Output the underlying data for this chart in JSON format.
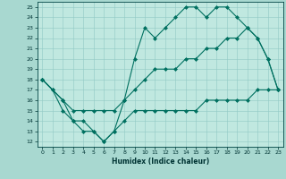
{
  "xlabel": "Humidex (Indice chaleur)",
  "bg_color": "#a8d8d0",
  "plot_bg_color": "#c0e8e0",
  "line_color": "#007060",
  "xlim": [
    -0.5,
    23.5
  ],
  "ylim": [
    11.5,
    25.5
  ],
  "xticks": [
    0,
    1,
    2,
    3,
    4,
    5,
    6,
    7,
    8,
    9,
    10,
    11,
    12,
    13,
    14,
    15,
    16,
    17,
    18,
    19,
    20,
    21,
    22,
    23
  ],
  "yticks": [
    12,
    13,
    14,
    15,
    16,
    17,
    18,
    19,
    20,
    21,
    22,
    23,
    24,
    25
  ],
  "line1_x": [
    0,
    1,
    2,
    3,
    4,
    5,
    6,
    7,
    8,
    9,
    10,
    11,
    12,
    13,
    14,
    15,
    16,
    17,
    18,
    19,
    20,
    21,
    22,
    23
  ],
  "line1_y": [
    18,
    17,
    16,
    14,
    13,
    13,
    12,
    13,
    14,
    15,
    15,
    15,
    15,
    15,
    15,
    15,
    16,
    16,
    16,
    16,
    16,
    17,
    17,
    17
  ],
  "line2_x": [
    0,
    1,
    2,
    3,
    4,
    5,
    6,
    7,
    8,
    9,
    10,
    11,
    12,
    13,
    14,
    15,
    16,
    17,
    18,
    19,
    20,
    21,
    22,
    23
  ],
  "line2_y": [
    18,
    17,
    15,
    14,
    14,
    13,
    12,
    13,
    16,
    20,
    23,
    22,
    23,
    24,
    25,
    25,
    24,
    25,
    25,
    24,
    23,
    22,
    20,
    17
  ],
  "line3_x": [
    0,
    2,
    3,
    4,
    5,
    6,
    7,
    8,
    9,
    10,
    11,
    12,
    13,
    14,
    15,
    16,
    17,
    18,
    19,
    20,
    21,
    22,
    23
  ],
  "line3_y": [
    18,
    16,
    15,
    15,
    15,
    15,
    15,
    16,
    17,
    18,
    19,
    19,
    19,
    20,
    20,
    21,
    21,
    22,
    22,
    23,
    22,
    20,
    17
  ]
}
